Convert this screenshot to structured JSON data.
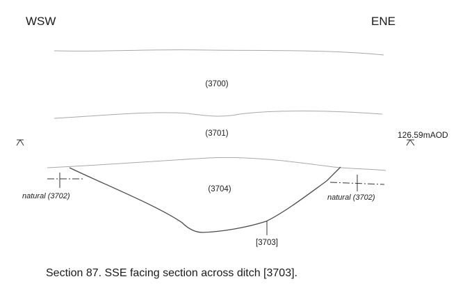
{
  "orientation": {
    "left": "WSW",
    "right": "ENE"
  },
  "contexts": {
    "topsoil": "(3700)",
    "subsoil": "(3701)",
    "ditch_fill": "(3704)"
  },
  "natural": {
    "left_label": "natural (3702)",
    "right_label": "natural (3702)"
  },
  "cut_label": "[3703]",
  "datum_label": "126.59mAOD",
  "caption": "Section 87. SSE facing section across ditch [3703]."
}
